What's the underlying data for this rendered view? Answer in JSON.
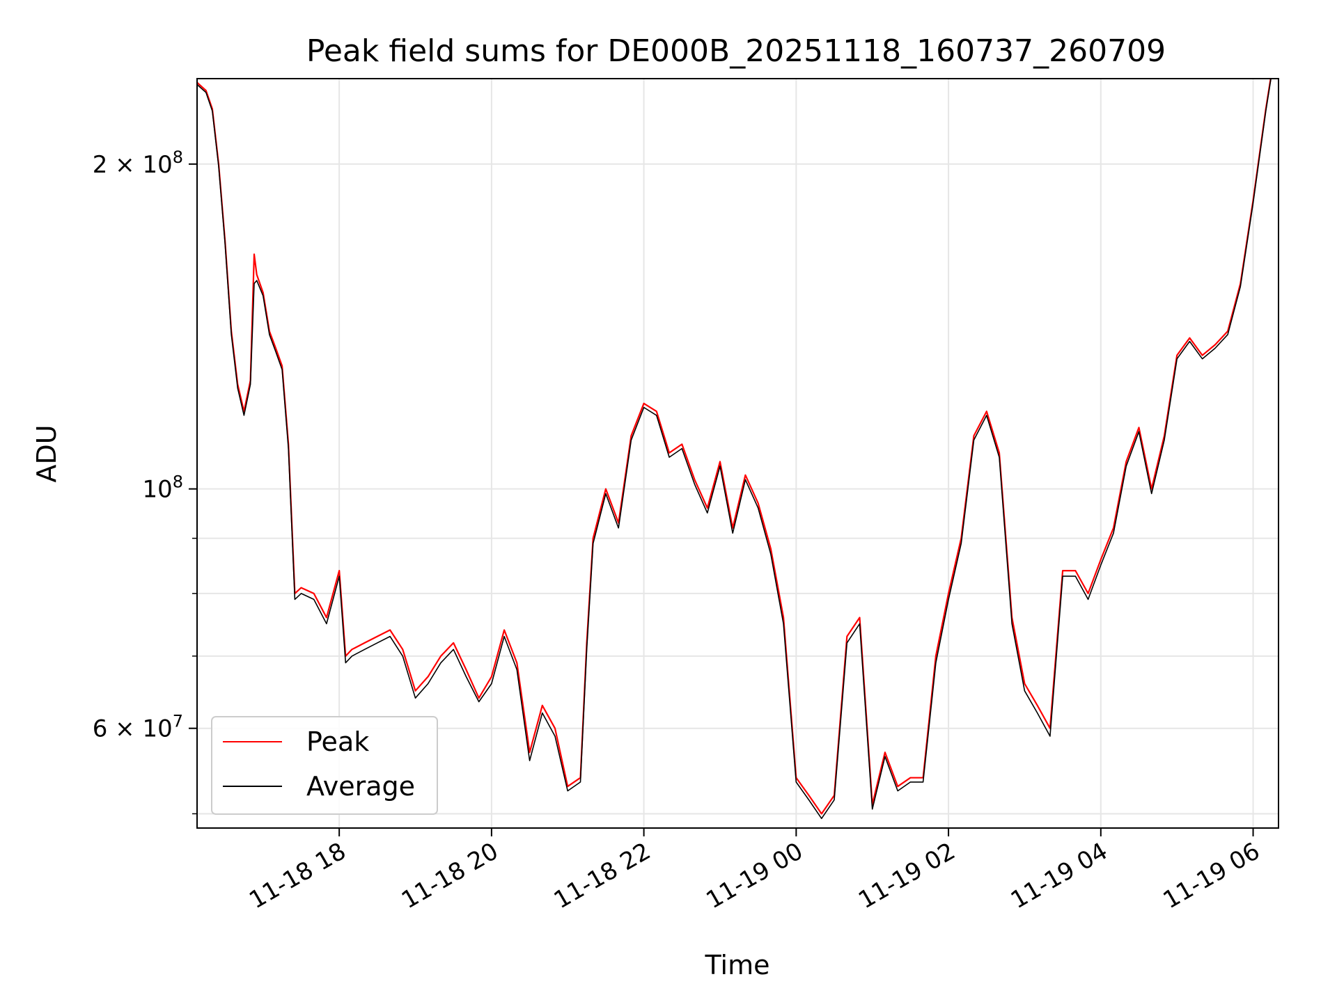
{
  "chart_data": {
    "type": "line",
    "title": "Peak field sums for DE000B_20251118_160737_260709",
    "xlabel": "Time",
    "ylabel": "ADU",
    "yscale": "log",
    "xlim": [
      "2025-11-18 16:08",
      "2025-11-19 06:20"
    ],
    "ylim": [
      48500000,
      240000000
    ],
    "grid": true,
    "legend_position": "lower-left",
    "x_ticks": [
      {
        "t": "2025-11-18 18:00",
        "label": "11-18 18"
      },
      {
        "t": "2025-11-18 20:00",
        "label": "11-18 20"
      },
      {
        "t": "2025-11-18 22:00",
        "label": "11-18 22"
      },
      {
        "t": "2025-11-19 00:00",
        "label": "11-19 00"
      },
      {
        "t": "2025-11-19 02:00",
        "label": "11-19 02"
      },
      {
        "t": "2025-11-19 04:00",
        "label": "11-19 04"
      },
      {
        "t": "2025-11-19 06:00",
        "label": "11-19 06"
      }
    ],
    "y_ticks_major": [
      {
        "v": 60000000,
        "mant": "6 × 10",
        "exp": "7"
      },
      {
        "v": 100000000,
        "mant": "10",
        "exp": "8"
      },
      {
        "v": 200000000,
        "mant": "2 × 10",
        "exp": "8"
      }
    ],
    "y_ticks_minor": [
      50000000,
      70000000,
      80000000,
      90000000
    ],
    "series": [
      {
        "name": "Peak",
        "color": "#ff0000",
        "x": [
          "2025-11-18 16:08",
          "2025-11-18 16:15",
          "2025-11-18 16:20",
          "2025-11-18 16:25",
          "2025-11-18 16:30",
          "2025-11-18 16:35",
          "2025-11-18 16:40",
          "2025-11-18 16:45",
          "2025-11-18 16:50",
          "2025-11-18 16:53",
          "2025-11-18 16:55",
          "2025-11-18 17:00",
          "2025-11-18 17:05",
          "2025-11-18 17:10",
          "2025-11-18 17:15",
          "2025-11-18 17:20",
          "2025-11-18 17:25",
          "2025-11-18 17:30",
          "2025-11-18 17:40",
          "2025-11-18 17:50",
          "2025-11-18 18:00",
          "2025-11-18 18:05",
          "2025-11-18 18:10",
          "2025-11-18 18:20",
          "2025-11-18 18:30",
          "2025-11-18 18:40",
          "2025-11-18 18:50",
          "2025-11-18 19:00",
          "2025-11-18 19:10",
          "2025-11-18 19:20",
          "2025-11-18 19:30",
          "2025-11-18 19:40",
          "2025-11-18 19:50",
          "2025-11-18 20:00",
          "2025-11-18 20:10",
          "2025-11-18 20:20",
          "2025-11-18 20:30",
          "2025-11-18 20:40",
          "2025-11-18 20:50",
          "2025-11-18 21:00",
          "2025-11-18 21:10",
          "2025-11-18 21:15",
          "2025-11-18 21:20",
          "2025-11-18 21:30",
          "2025-11-18 21:40",
          "2025-11-18 21:50",
          "2025-11-18 22:00",
          "2025-11-18 22:10",
          "2025-11-18 22:20",
          "2025-11-18 22:30",
          "2025-11-18 22:40",
          "2025-11-18 22:50",
          "2025-11-18 23:00",
          "2025-11-18 23:10",
          "2025-11-18 23:20",
          "2025-11-18 23:30",
          "2025-11-18 23:40",
          "2025-11-18 23:50",
          "2025-11-19 00:00",
          "2025-11-19 00:10",
          "2025-11-19 00:20",
          "2025-11-19 00:30",
          "2025-11-19 00:40",
          "2025-11-19 00:50",
          "2025-11-19 01:00",
          "2025-11-19 01:10",
          "2025-11-19 01:20",
          "2025-11-19 01:30",
          "2025-11-19 01:40",
          "2025-11-19 01:50",
          "2025-11-19 02:00",
          "2025-11-19 02:10",
          "2025-11-19 02:20",
          "2025-11-19 02:30",
          "2025-11-19 02:40",
          "2025-11-19 02:50",
          "2025-11-19 03:00",
          "2025-11-19 03:10",
          "2025-11-19 03:20",
          "2025-11-19 03:30",
          "2025-11-19 03:40",
          "2025-11-19 03:50",
          "2025-11-19 04:00",
          "2025-11-19 04:10",
          "2025-11-19 04:20",
          "2025-11-19 04:30",
          "2025-11-19 04:40",
          "2025-11-19 04:50",
          "2025-11-19 05:00",
          "2025-11-19 05:10",
          "2025-11-19 05:20",
          "2025-11-19 05:30",
          "2025-11-19 05:40",
          "2025-11-19 05:50",
          "2025-11-19 06:00",
          "2025-11-19 06:10",
          "2025-11-19 06:15"
        ],
        "values": [
          238000000,
          234000000,
          225000000,
          200000000,
          170000000,
          140000000,
          125000000,
          118000000,
          126000000,
          165000000,
          158000000,
          152000000,
          140000000,
          135000000,
          130000000,
          110000000,
          80000000,
          81000000,
          80000000,
          76000000,
          84000000,
          70000000,
          71000000,
          72000000,
          73000000,
          74000000,
          71000000,
          65000000,
          67000000,
          70000000,
          72000000,
          68000000,
          64000000,
          67000000,
          74000000,
          69000000,
          57000000,
          63000000,
          60000000,
          53000000,
          54000000,
          72000000,
          90000000,
          100000000,
          93000000,
          112000000,
          120000000,
          118000000,
          108000000,
          110000000,
          102000000,
          96000000,
          106000000,
          92000000,
          103000000,
          97000000,
          88000000,
          76000000,
          54000000,
          52000000,
          50000000,
          52000000,
          73000000,
          76000000,
          51000000,
          57000000,
          53000000,
          54000000,
          54000000,
          70000000,
          80000000,
          90000000,
          112000000,
          118000000,
          108000000,
          76000000,
          66000000,
          63000000,
          60000000,
          84000000,
          84000000,
          80000000,
          86000000,
          92000000,
          106000000,
          114000000,
          100000000,
          112000000,
          133000000,
          138000000,
          133000000,
          136000000,
          140000000,
          155000000,
          185000000,
          225000000,
          245000000
        ]
      },
      {
        "name": "Average",
        "color": "#000000",
        "x": [
          "2025-11-18 16:08",
          "2025-11-18 16:15",
          "2025-11-18 16:20",
          "2025-11-18 16:25",
          "2025-11-18 16:30",
          "2025-11-18 16:35",
          "2025-11-18 16:40",
          "2025-11-18 16:45",
          "2025-11-18 16:50",
          "2025-11-18 16:53",
          "2025-11-18 16:55",
          "2025-11-18 17:00",
          "2025-11-18 17:05",
          "2025-11-18 17:10",
          "2025-11-18 17:15",
          "2025-11-18 17:20",
          "2025-11-18 17:25",
          "2025-11-18 17:30",
          "2025-11-18 17:40",
          "2025-11-18 17:50",
          "2025-11-18 18:00",
          "2025-11-18 18:05",
          "2025-11-18 18:10",
          "2025-11-18 18:20",
          "2025-11-18 18:30",
          "2025-11-18 18:40",
          "2025-11-18 18:50",
          "2025-11-18 19:00",
          "2025-11-18 19:10",
          "2025-11-18 19:20",
          "2025-11-18 19:30",
          "2025-11-18 19:40",
          "2025-11-18 19:50",
          "2025-11-18 20:00",
          "2025-11-18 20:10",
          "2025-11-18 20:20",
          "2025-11-18 20:30",
          "2025-11-18 20:40",
          "2025-11-18 20:50",
          "2025-11-18 21:00",
          "2025-11-18 21:10",
          "2025-11-18 21:15",
          "2025-11-18 21:20",
          "2025-11-18 21:30",
          "2025-11-18 21:40",
          "2025-11-18 21:50",
          "2025-11-18 22:00",
          "2025-11-18 22:10",
          "2025-11-18 22:20",
          "2025-11-18 22:30",
          "2025-11-18 22:40",
          "2025-11-18 22:50",
          "2025-11-18 23:00",
          "2025-11-18 23:10",
          "2025-11-18 23:20",
          "2025-11-18 23:30",
          "2025-11-18 23:40",
          "2025-11-18 23:50",
          "2025-11-19 00:00",
          "2025-11-19 00:10",
          "2025-11-19 00:20",
          "2025-11-19 00:30",
          "2025-11-19 00:40",
          "2025-11-19 00:50",
          "2025-11-19 01:00",
          "2025-11-19 01:10",
          "2025-11-19 01:20",
          "2025-11-19 01:30",
          "2025-11-19 01:40",
          "2025-11-19 01:50",
          "2025-11-19 02:00",
          "2025-11-19 02:10",
          "2025-11-19 02:20",
          "2025-11-19 02:30",
          "2025-11-19 02:40",
          "2025-11-19 02:50",
          "2025-11-19 03:00",
          "2025-11-19 03:10",
          "2025-11-19 03:20",
          "2025-11-19 03:30",
          "2025-11-19 03:40",
          "2025-11-19 03:50",
          "2025-11-19 04:00",
          "2025-11-19 04:10",
          "2025-11-19 04:20",
          "2025-11-19 04:30",
          "2025-11-19 04:40",
          "2025-11-19 04:50",
          "2025-11-19 05:00",
          "2025-11-19 05:10",
          "2025-11-19 05:20",
          "2025-11-19 05:30",
          "2025-11-19 05:40",
          "2025-11-19 05:50",
          "2025-11-19 06:00",
          "2025-11-19 06:10",
          "2025-11-19 06:15"
        ],
        "values": [
          237000000,
          233000000,
          224000000,
          199000000,
          169000000,
          139000000,
          124000000,
          117000000,
          125000000,
          155000000,
          156000000,
          151000000,
          139000000,
          134000000,
          129000000,
          109000000,
          79000000,
          80000000,
          79000000,
          75000000,
          83000000,
          69000000,
          70000000,
          71000000,
          72000000,
          73000000,
          70000000,
          64000000,
          66000000,
          69000000,
          71000000,
          67000000,
          63500000,
          66000000,
          73000000,
          68000000,
          56000000,
          62000000,
          59000000,
          52500000,
          53500000,
          71000000,
          89000000,
          99000000,
          92000000,
          111000000,
          119000000,
          117000000,
          107000000,
          109000000,
          101000000,
          95000000,
          105000000,
          91000000,
          102000000,
          96000000,
          87000000,
          75000000,
          53500000,
          51500000,
          49500000,
          51500000,
          72000000,
          75000000,
          50500000,
          56500000,
          52500000,
          53500000,
          53500000,
          69000000,
          79000000,
          89000000,
          111000000,
          117000000,
          107000000,
          75000000,
          65000000,
          62000000,
          59000000,
          83000000,
          83000000,
          79000000,
          85000000,
          91000000,
          105000000,
          113000000,
          99000000,
          111000000,
          132000000,
          137000000,
          132000000,
          135000000,
          139000000,
          154000000,
          184000000,
          224000000,
          244000000
        ]
      }
    ]
  }
}
